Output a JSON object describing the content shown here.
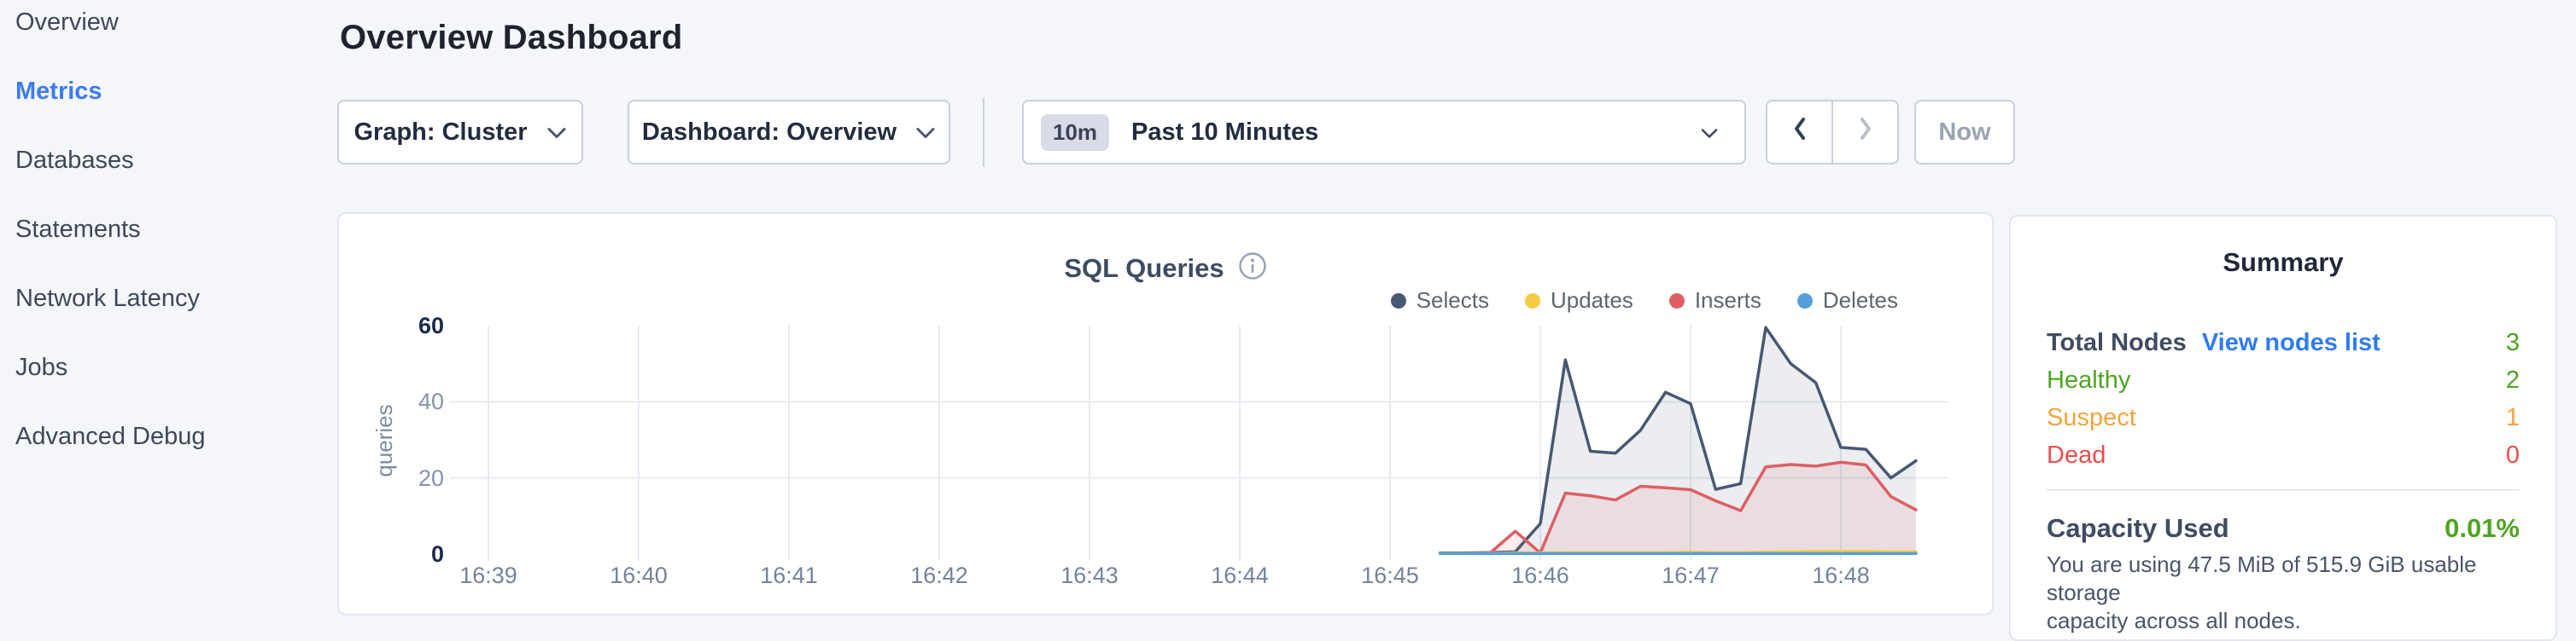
{
  "sidebar": {
    "items": [
      {
        "label": "Overview",
        "active": false
      },
      {
        "label": "Metrics",
        "active": true
      },
      {
        "label": "Databases",
        "active": false
      },
      {
        "label": "Statements",
        "active": false
      },
      {
        "label": "Network Latency",
        "active": false
      },
      {
        "label": "Jobs",
        "active": false
      },
      {
        "label": "Advanced Debug",
        "active": false
      }
    ]
  },
  "header": {
    "title": "Overview Dashboard"
  },
  "toolbar": {
    "graph_dropdown_label": "Graph: Cluster",
    "dashboard_dropdown_label": "Dashboard: Overview",
    "time_range_badge": "10m",
    "time_range_label": "Past 10 Minutes",
    "now_button_label": "Now"
  },
  "chart_data": {
    "type": "area",
    "title": "SQL Queries",
    "ylabel": "queries",
    "x_start": "16:39",
    "x_ticks": [
      "16:39",
      "16:40",
      "16:41",
      "16:42",
      "16:43",
      "16:44",
      "16:45",
      "16:46",
      "16:47",
      "16:48"
    ],
    "y_ticks": [
      0,
      20,
      40,
      60
    ],
    "grid_y_ticks": [
      20,
      40
    ],
    "ylim": [
      0,
      60
    ],
    "grid": true,
    "legend_position": "top-right",
    "legend_order": [
      "Selects",
      "Updates",
      "Inserts",
      "Deletes"
    ],
    "series": [
      {
        "name": "Selects",
        "color": "#475872",
        "fill_opacity": 0.11,
        "points": [
          [
            "16:45:20",
            0.3
          ],
          [
            "16:45:30",
            0.3
          ],
          [
            "16:45:40",
            0.4
          ],
          [
            "16:45:50",
            0.6
          ],
          [
            "16:46:00",
            8
          ],
          [
            "16:46:10",
            51
          ],
          [
            "16:46:20",
            27
          ],
          [
            "16:46:30",
            26.5
          ],
          [
            "16:46:40",
            32.5
          ],
          [
            "16:46:50",
            42.5
          ],
          [
            "16:47:00",
            39.5
          ],
          [
            "16:47:10",
            17
          ],
          [
            "16:47:20",
            18.5
          ],
          [
            "16:47:30",
            59.5
          ],
          [
            "16:47:40",
            50
          ],
          [
            "16:47:50",
            45
          ],
          [
            "16:48:00",
            28
          ],
          [
            "16:48:10",
            27.5
          ],
          [
            "16:48:20",
            20
          ],
          [
            "16:48:30",
            24.5
          ]
        ]
      },
      {
        "name": "Inserts",
        "color": "#dd5f63",
        "fill_opacity": 0.11,
        "points": [
          [
            "16:45:20",
            0.2
          ],
          [
            "16:45:30",
            0.2
          ],
          [
            "16:45:40",
            0.3
          ],
          [
            "16:45:50",
            6
          ],
          [
            "16:46:00",
            0.3
          ],
          [
            "16:46:10",
            16
          ],
          [
            "16:46:20",
            15.3
          ],
          [
            "16:46:30",
            14.2
          ],
          [
            "16:46:40",
            17.8
          ],
          [
            "16:46:50",
            17.4
          ],
          [
            "16:47:00",
            16.9
          ],
          [
            "16:47:10",
            14
          ],
          [
            "16:47:20",
            11.4
          ],
          [
            "16:47:30",
            22.9
          ],
          [
            "16:47:40",
            23.5
          ],
          [
            "16:47:50",
            23.1
          ],
          [
            "16:48:00",
            24.1
          ],
          [
            "16:48:10",
            23.4
          ],
          [
            "16:48:20",
            15.1
          ],
          [
            "16:48:30",
            11.6
          ]
        ]
      },
      {
        "name": "Updates",
        "color": "#f6cb45",
        "fill_opacity": 0.11,
        "points": [
          [
            "16:45:20",
            0.2
          ],
          [
            "16:45:30",
            0.2
          ],
          [
            "16:45:40",
            0.2
          ],
          [
            "16:45:50",
            0.3
          ],
          [
            "16:46:00",
            0.3
          ],
          [
            "16:46:10",
            0.4
          ],
          [
            "16:46:20",
            0.4
          ],
          [
            "16:46:30",
            0.4
          ],
          [
            "16:46:40",
            0.4
          ],
          [
            "16:46:50",
            0.4
          ],
          [
            "16:47:00",
            0.5
          ],
          [
            "16:47:10",
            0.4
          ],
          [
            "16:47:20",
            0.4
          ],
          [
            "16:47:30",
            0.5
          ],
          [
            "16:47:40",
            0.6
          ],
          [
            "16:47:50",
            0.7
          ],
          [
            "16:48:00",
            0.7
          ],
          [
            "16:48:10",
            0.7
          ],
          [
            "16:48:20",
            0.6
          ],
          [
            "16:48:30",
            0.6
          ]
        ]
      },
      {
        "name": "Deletes",
        "color": "#549fd7",
        "fill_opacity": 0.11,
        "points": [
          [
            "16:45:20",
            0.15
          ],
          [
            "16:45:30",
            0.15
          ],
          [
            "16:45:40",
            0.15
          ],
          [
            "16:45:50",
            0.15
          ],
          [
            "16:46:00",
            0.15
          ],
          [
            "16:46:10",
            0.15
          ],
          [
            "16:46:20",
            0.15
          ],
          [
            "16:46:30",
            0.15
          ],
          [
            "16:46:40",
            0.15
          ],
          [
            "16:46:50",
            0.15
          ],
          [
            "16:47:00",
            0.15
          ],
          [
            "16:47:10",
            0.15
          ],
          [
            "16:47:20",
            0.15
          ],
          [
            "16:47:30",
            0.15
          ],
          [
            "16:47:40",
            0.15
          ],
          [
            "16:47:50",
            0.15
          ],
          [
            "16:48:00",
            0.15
          ],
          [
            "16:48:10",
            0.15
          ],
          [
            "16:48:20",
            0.15
          ],
          [
            "16:48:30",
            0.15
          ]
        ]
      }
    ]
  },
  "summary": {
    "title": "Summary",
    "rows": [
      {
        "label": "Total Nodes",
        "label_color": "#3f4b61",
        "bold": true,
        "link": "View nodes list",
        "link_color": "#2f7cf0",
        "value": "3",
        "value_color": "#4fa321"
      },
      {
        "label": "Healthy",
        "label_color": "#4fa321",
        "bold": false,
        "value": "2",
        "value_color": "#4fa321"
      },
      {
        "label": "Suspect",
        "label_color": "#f5a33b",
        "bold": false,
        "value": "1",
        "value_color": "#f5a33b"
      },
      {
        "label": "Dead",
        "label_color": "#ee4c4c",
        "bold": false,
        "value": "0",
        "value_color": "#ee4c4c"
      }
    ],
    "capacity": {
      "label": "Capacity Used",
      "value": "0.01%",
      "value_color": "#4fa321",
      "description_lines": [
        "You are using 47.5 MiB of 515.9 GiB usable storage",
        "capacity across all nodes."
      ]
    }
  }
}
